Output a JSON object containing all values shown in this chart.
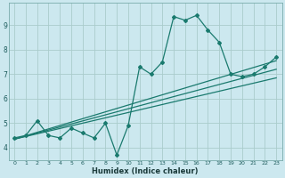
{
  "title": "",
  "xlabel": "Humidex (Indice chaleur)",
  "bg_color": "#cce8ef",
  "grid_color": "#aacccc",
  "line_color": "#1a7a6e",
  "xlim": [
    -0.5,
    23.5
  ],
  "ylim": [
    3.5,
    9.9
  ],
  "xtick_vals": [
    0,
    1,
    2,
    3,
    4,
    5,
    6,
    7,
    8,
    9,
    10,
    11,
    12,
    13,
    14,
    15,
    16,
    17,
    18,
    19,
    20,
    21,
    22,
    23
  ],
  "xtick_labels": [
    "0",
    "1",
    "2",
    "3",
    "4",
    "5",
    "6",
    "7",
    "8",
    "9",
    "10",
    "11",
    "12",
    "13",
    "14",
    "15",
    "16",
    "17",
    "18",
    "19",
    "20",
    "21",
    "22",
    "23"
  ],
  "ytick_vals": [
    4,
    5,
    6,
    7,
    8,
    9
  ],
  "ytick_labels": [
    "4",
    "5",
    "6",
    "7",
    "8",
    "9"
  ],
  "main_line_x": [
    0,
    1,
    2,
    3,
    4,
    5,
    6,
    7,
    8,
    9,
    10,
    11,
    12,
    13,
    14,
    15,
    16,
    17,
    18,
    19,
    20,
    21,
    22,
    23
  ],
  "main_line_y": [
    4.4,
    4.5,
    5.1,
    4.5,
    4.4,
    4.8,
    4.6,
    4.4,
    5.0,
    3.7,
    4.9,
    7.3,
    7.0,
    7.5,
    9.35,
    9.2,
    9.4,
    8.8,
    8.3,
    7.0,
    6.9,
    7.0,
    7.3,
    7.7
  ],
  "trend_line1_x": [
    0,
    23
  ],
  "trend_line1_y": [
    4.35,
    7.55
  ],
  "trend_line2_x": [
    0,
    23
  ],
  "trend_line2_y": [
    4.35,
    7.2
  ],
  "trend_line3_x": [
    0,
    23
  ],
  "trend_line3_y": [
    4.35,
    6.85
  ]
}
